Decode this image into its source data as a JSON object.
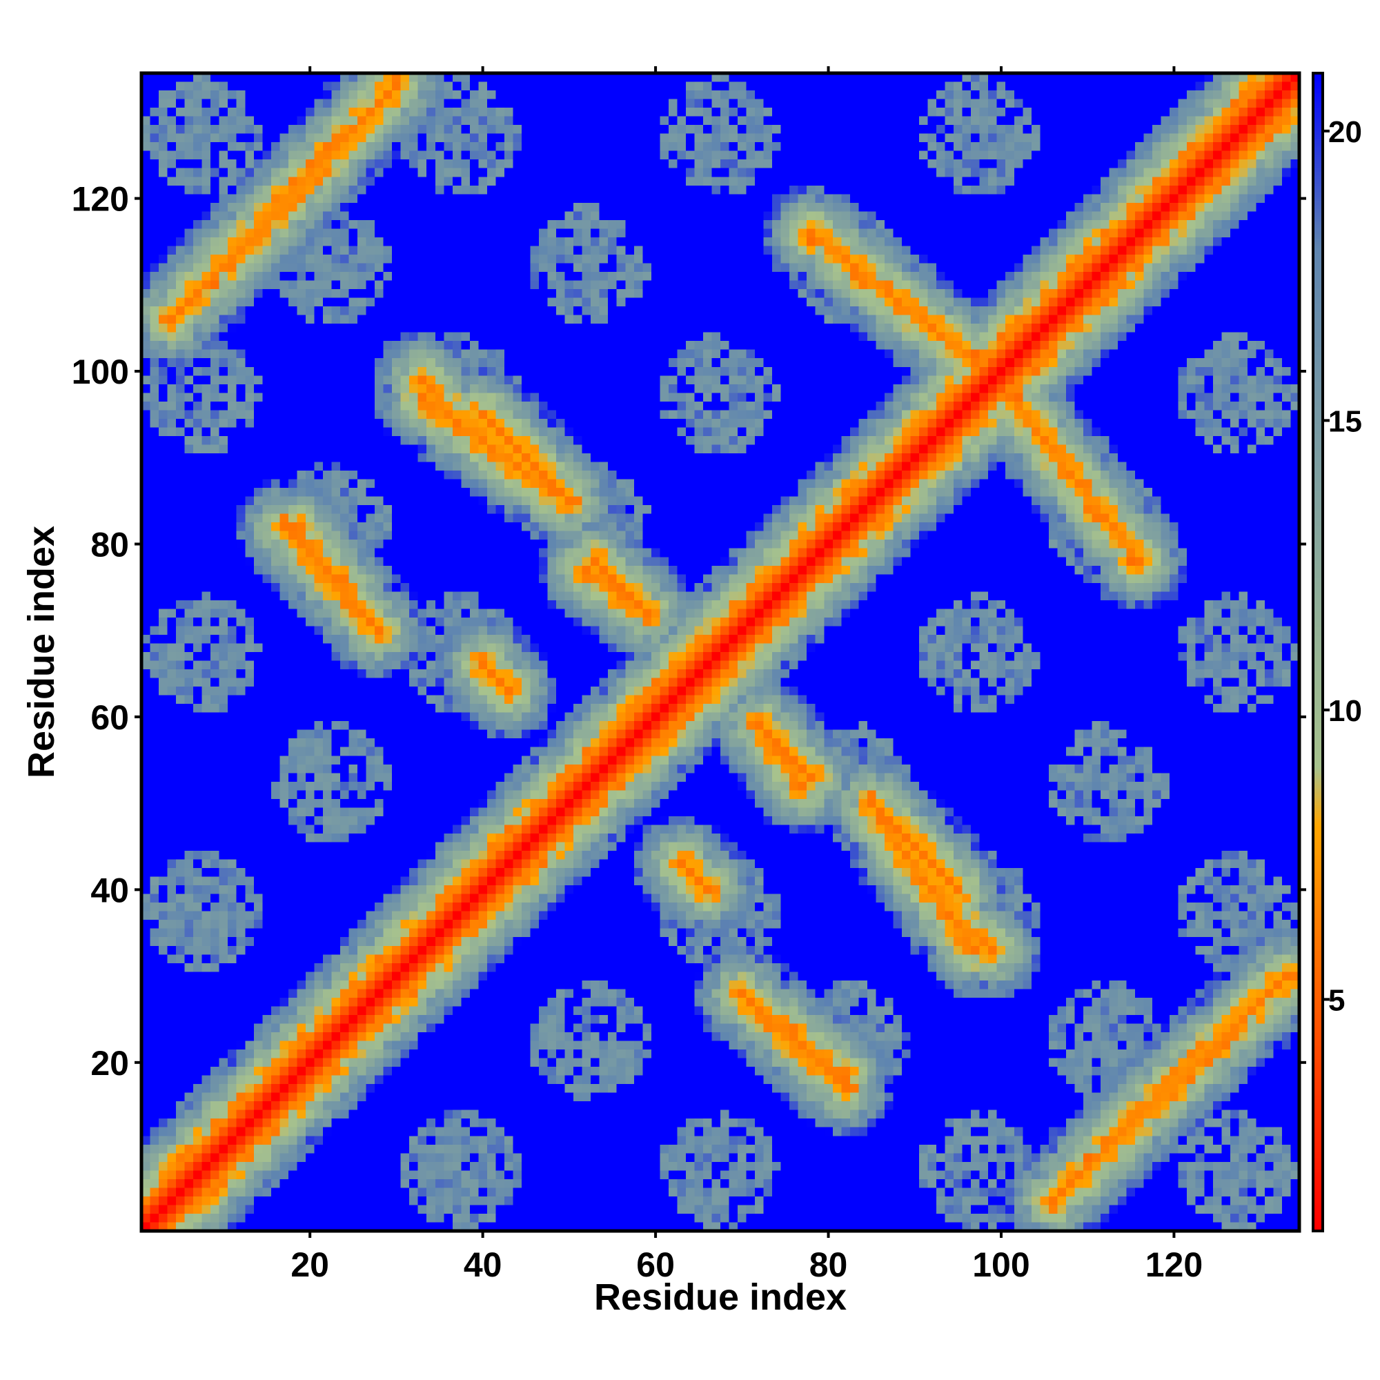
{
  "chart_data": {
    "type": "heatmap",
    "title": "",
    "xlabel": "Residue index",
    "ylabel": "Residue index",
    "n_residues": 134,
    "xlim": [
      1,
      134
    ],
    "ylim": [
      1,
      134
    ],
    "x_ticks": [
      20,
      40,
      60,
      80,
      100,
      120
    ],
    "y_ticks": [
      20,
      40,
      60,
      80,
      100,
      120
    ],
    "x_tick_labels": [
      "20",
      "40",
      "60",
      "80",
      "100",
      "120"
    ],
    "y_tick_labels": [
      "20",
      "40",
      "60",
      "80",
      "100",
      "120"
    ],
    "colorbar": {
      "range": [
        1,
        21
      ],
      "ticks": [
        5,
        10,
        15,
        20
      ],
      "tick_labels": [
        "5",
        "10",
        "15",
        "20"
      ],
      "color_stops": [
        {
          "value": 1,
          "color": "#ff0000"
        },
        {
          "value": 8,
          "color": "#ffa500"
        },
        {
          "value": 9,
          "color": "#a7c28d"
        },
        {
          "value": 18,
          "color": "#5f85b0"
        },
        {
          "value": 21,
          "color": "#0000ff"
        }
      ]
    },
    "contact_features": [
      {
        "kind": "diagonal",
        "from": 1,
        "to": 134,
        "value": 1
      },
      {
        "kind": "parallel",
        "a": [
          4,
          106
        ],
        "b": [
          30,
          133
        ],
        "value": 6
      },
      {
        "kind": "parallel",
        "a": [
          106,
          4
        ],
        "b": [
          133,
          30
        ],
        "value": 6
      },
      {
        "kind": "antiparallel",
        "a": [
          17,
          82
        ],
        "b": [
          28,
          70
        ],
        "value": 6
      },
      {
        "kind": "antiparallel",
        "a": [
          82,
          17
        ],
        "b": [
          70,
          28
        ],
        "value": 6
      },
      {
        "kind": "antiparallel",
        "a": [
          33,
          97
        ],
        "b": [
          48,
          86
        ],
        "value": 6
      },
      {
        "kind": "antiparallel",
        "a": [
          97,
          33
        ],
        "b": [
          86,
          48
        ],
        "value": 6
      },
      {
        "kind": "antiparallel",
        "a": [
          78,
          116
        ],
        "b": [
          97,
          101
        ],
        "value": 6
      },
      {
        "kind": "antiparallel",
        "a": [
          116,
          78
        ],
        "b": [
          101,
          97
        ],
        "value": 6
      },
      {
        "kind": "antiparallel",
        "a": [
          71,
          27
        ],
        "b": [
          82,
          18
        ],
        "value": 6
      },
      {
        "kind": "antiparallel",
        "a": [
          27,
          71
        ],
        "b": [
          18,
          82
        ],
        "value": 6
      },
      {
        "kind": "antiparallel",
        "a": [
          85,
          50
        ],
        "b": [
          95,
          40
        ],
        "value": 6
      },
      {
        "kind": "antiparallel",
        "a": [
          50,
          85
        ],
        "b": [
          40,
          95
        ],
        "value": 6
      },
      {
        "kind": "antiparallel",
        "a": [
          72,
          59
        ],
        "b": [
          78,
          53
        ],
        "value": 6
      },
      {
        "kind": "antiparallel",
        "a": [
          59,
          72
        ],
        "b": [
          53,
          78
        ],
        "value": 6
      },
      {
        "kind": "antiparallel",
        "a": [
          94,
          37
        ],
        "b": [
          99,
          33
        ],
        "value": 6
      },
      {
        "kind": "antiparallel",
        "a": [
          37,
          94
        ],
        "b": [
          33,
          99
        ],
        "value": 6
      },
      {
        "kind": "short",
        "a": [
          52,
          77
        ],
        "b": [
          59,
          72
        ],
        "value": 6
      },
      {
        "kind": "short",
        "a": [
          77,
          52
        ],
        "b": [
          72,
          59
        ],
        "value": 6
      },
      {
        "kind": "short",
        "a": [
          40,
          66
        ],
        "b": [
          43,
          63
        ],
        "value": 6
      },
      {
        "kind": "short",
        "a": [
          66,
          40
        ],
        "b": [
          63,
          43
        ],
        "value": 6
      }
    ]
  }
}
